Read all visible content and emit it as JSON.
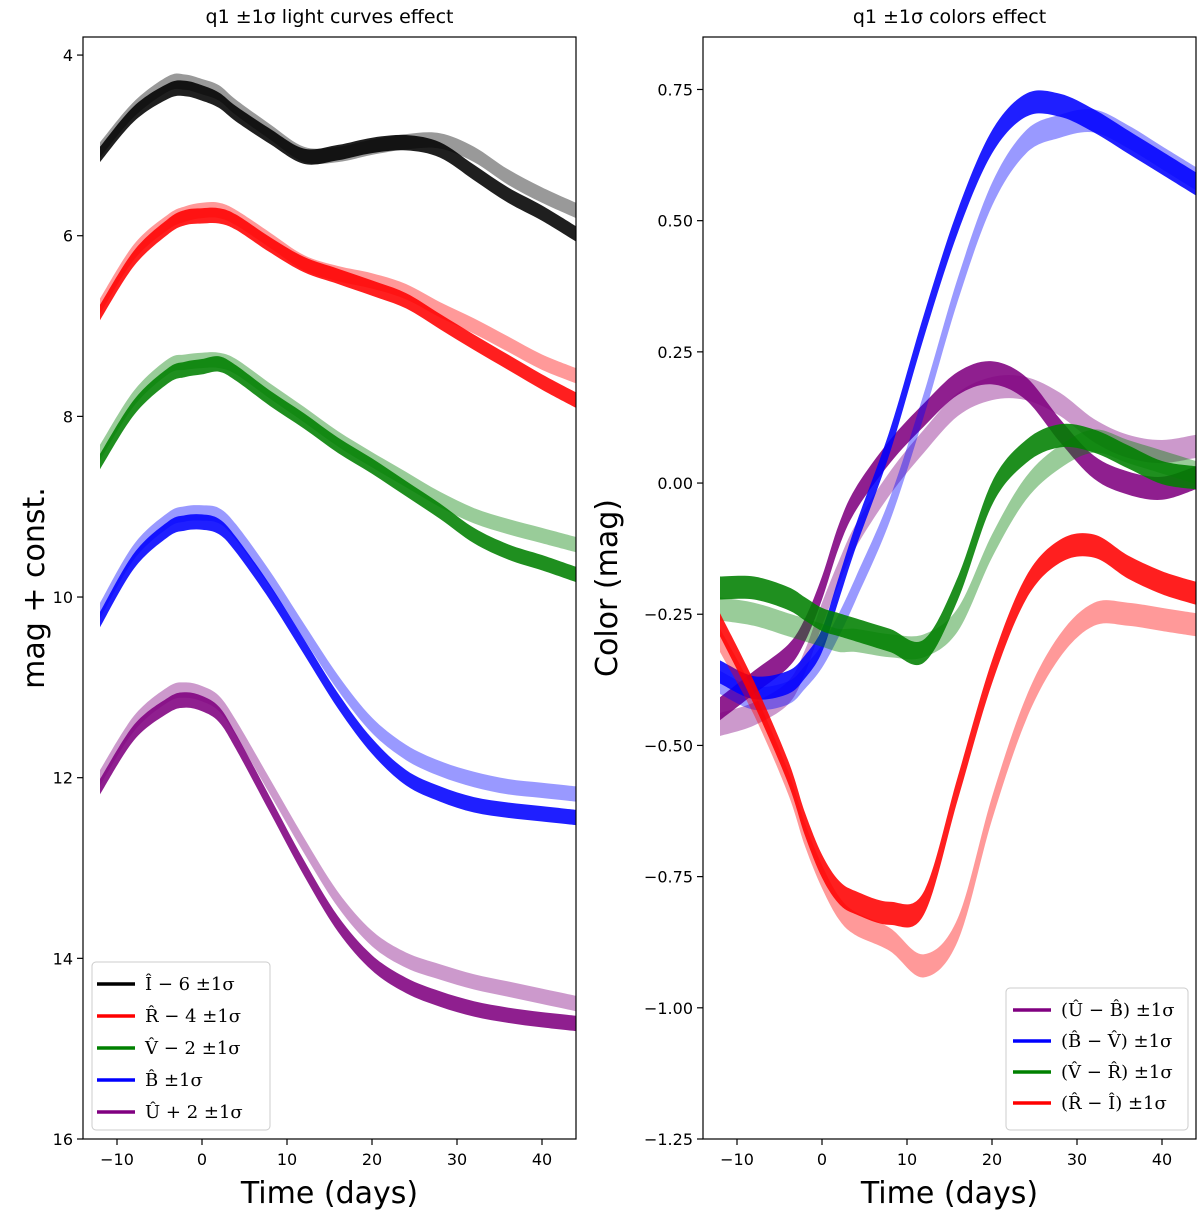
{
  "chart_data": [
    {
      "type": "area",
      "title": "q1 ±1σ light curves effect",
      "xlabel": "Time (days)",
      "ylabel": "mag + const.",
      "xlim": [
        -14,
        44
      ],
      "ylim": [
        16,
        3.8
      ],
      "y_inverted": true,
      "xticks": [
        "−10",
        "0",
        "10",
        "20",
        "30",
        "40"
      ],
      "xtick_values": [
        -10,
        0,
        10,
        20,
        30,
        40
      ],
      "yticks": [
        "4",
        "6",
        "8",
        "10",
        "12",
        "14",
        "16"
      ],
      "ytick_values": [
        4,
        6,
        8,
        10,
        12,
        14,
        16
      ],
      "legend_position": "lower-left",
      "x": [
        -12,
        -8,
        -4,
        -2,
        0,
        2,
        4,
        8,
        12,
        16,
        20,
        24,
        28,
        32,
        36,
        40,
        44
      ],
      "series": [
        {
          "name": "Î − 6 ±1σ",
          "color": "#000000",
          "minus": [
            5.1,
            4.65,
            4.4,
            4.37,
            4.42,
            4.5,
            4.65,
            4.9,
            5.12,
            5.08,
            5.0,
            4.97,
            5.05,
            5.3,
            5.55,
            5.75,
            5.98
          ],
          "plus": [
            5.05,
            4.6,
            4.32,
            4.3,
            4.35,
            4.42,
            4.58,
            4.85,
            5.1,
            5.1,
            5.02,
            4.96,
            4.95,
            5.1,
            5.35,
            5.55,
            5.72
          ]
        },
        {
          "name": "R̂ − 4 ±1σ",
          "color": "#ff0000",
          "minus": [
            6.85,
            6.25,
            5.9,
            5.8,
            5.78,
            5.78,
            5.85,
            6.1,
            6.32,
            6.45,
            6.58,
            6.72,
            6.95,
            7.18,
            7.4,
            7.62,
            7.82
          ],
          "plus": [
            6.78,
            6.18,
            5.85,
            5.76,
            5.72,
            5.72,
            5.8,
            6.05,
            6.3,
            6.42,
            6.5,
            6.62,
            6.82,
            7.0,
            7.2,
            7.4,
            7.55
          ]
        },
        {
          "name": "V̂ − 2 ±1σ",
          "color": "#008000",
          "minus": [
            8.5,
            7.9,
            7.55,
            7.48,
            7.45,
            7.42,
            7.52,
            7.8,
            8.05,
            8.32,
            8.55,
            8.8,
            9.05,
            9.32,
            9.5,
            9.62,
            9.75
          ],
          "plus": [
            8.4,
            7.8,
            7.45,
            7.4,
            7.38,
            7.38,
            7.45,
            7.72,
            7.98,
            8.25,
            8.48,
            8.7,
            8.92,
            9.1,
            9.22,
            9.32,
            9.42
          ]
        },
        {
          "name": "B̂ ±1σ",
          "color": "#0000ff",
          "minus": [
            10.25,
            9.6,
            9.25,
            9.18,
            9.17,
            9.22,
            9.42,
            9.95,
            10.55,
            11.15,
            11.65,
            12.0,
            12.18,
            12.3,
            12.36,
            12.4,
            12.44
          ],
          "plus": [
            10.15,
            9.5,
            9.15,
            9.08,
            9.07,
            9.1,
            9.28,
            9.8,
            10.38,
            10.95,
            11.42,
            11.72,
            11.9,
            12.02,
            12.1,
            12.14,
            12.18
          ]
        },
        {
          "name": "Û + 2 ±1σ",
          "color": "#800080",
          "minus": [
            12.1,
            11.5,
            11.2,
            11.14,
            11.18,
            11.3,
            11.6,
            12.3,
            13.0,
            13.62,
            14.05,
            14.3,
            14.45,
            14.56,
            14.63,
            14.68,
            14.72
          ],
          "plus": [
            12.0,
            11.4,
            11.08,
            11.03,
            11.07,
            11.18,
            11.45,
            12.1,
            12.75,
            13.35,
            13.78,
            14.02,
            14.15,
            14.26,
            14.34,
            14.42,
            14.5
          ]
        }
      ]
    },
    {
      "type": "area",
      "title": "q1 ±1σ colors effect",
      "xlabel": "Time (days)",
      "ylabel": "Color (mag)",
      "xlim": [
        -14,
        44
      ],
      "ylim": [
        -1.25,
        0.85
      ],
      "xticks": [
        "−10",
        "0",
        "10",
        "20",
        "30",
        "40"
      ],
      "xtick_values": [
        -10,
        0,
        10,
        20,
        30,
        40
      ],
      "yticks": [
        "0.75",
        "0.50",
        "0.25",
        "0.00",
        "−0.25",
        "−0.50",
        "−0.75",
        "−1.00",
        "−1.25"
      ],
      "ytick_values": [
        0.75,
        0.5,
        0.25,
        0.0,
        -0.25,
        -0.5,
        -0.75,
        -1.0,
        -1.25
      ],
      "legend_position": "lower-right",
      "x": [
        -12,
        -8,
        -4,
        -2,
        0,
        2,
        4,
        8,
        12,
        16,
        20,
        24,
        28,
        32,
        36,
        40,
        44
      ],
      "series": [
        {
          "name": "(Û − B̂) ±1σ",
          "color": "#800080",
          "minus": [
            -0.43,
            -0.38,
            -0.33,
            -0.28,
            -0.2,
            -0.1,
            -0.03,
            0.06,
            0.13,
            0.19,
            0.21,
            0.18,
            0.1,
            0.03,
            0.0,
            -0.01,
            0.01
          ],
          "plus": [
            -0.46,
            -0.44,
            -0.4,
            -0.34,
            -0.25,
            -0.17,
            -0.1,
            0.0,
            0.08,
            0.15,
            0.18,
            0.18,
            0.15,
            0.1,
            0.07,
            0.06,
            0.07
          ]
        },
        {
          "name": "(B̂ − V̂) ±1σ",
          "color": "#0000ff",
          "minus": [
            -0.36,
            -0.39,
            -0.38,
            -0.35,
            -0.3,
            -0.2,
            -0.1,
            0.08,
            0.3,
            0.5,
            0.65,
            0.72,
            0.72,
            0.69,
            0.65,
            0.61,
            0.57
          ],
          "plus": [
            -0.38,
            -0.41,
            -0.4,
            -0.37,
            -0.33,
            -0.27,
            -0.2,
            -0.05,
            0.15,
            0.37,
            0.55,
            0.65,
            0.68,
            0.69,
            0.66,
            0.62,
            0.58
          ]
        },
        {
          "name": "(V̂ − R̂) ±1σ",
          "color": "#008000",
          "minus": [
            -0.2,
            -0.2,
            -0.22,
            -0.24,
            -0.26,
            -0.27,
            -0.28,
            -0.3,
            -0.32,
            -0.2,
            -0.02,
            0.06,
            0.09,
            0.08,
            0.05,
            0.02,
            0.01
          ],
          "plus": [
            -0.24,
            -0.25,
            -0.27,
            -0.28,
            -0.29,
            -0.3,
            -0.3,
            -0.31,
            -0.31,
            -0.26,
            -0.12,
            -0.01,
            0.05,
            0.08,
            0.06,
            0.04,
            0.02
          ]
        },
        {
          "name": "(R̂ − Î) ±1σ",
          "color": "#ff0000",
          "minus": [
            -0.27,
            -0.4,
            -0.55,
            -0.65,
            -0.73,
            -0.78,
            -0.8,
            -0.82,
            -0.8,
            -0.58,
            -0.36,
            -0.2,
            -0.13,
            -0.12,
            -0.16,
            -0.19,
            -0.21
          ],
          "plus": [
            -0.3,
            -0.42,
            -0.57,
            -0.67,
            -0.75,
            -0.81,
            -0.84,
            -0.87,
            -0.92,
            -0.85,
            -0.62,
            -0.43,
            -0.31,
            -0.25,
            -0.25,
            -0.26,
            -0.27
          ]
        }
      ]
    }
  ]
}
